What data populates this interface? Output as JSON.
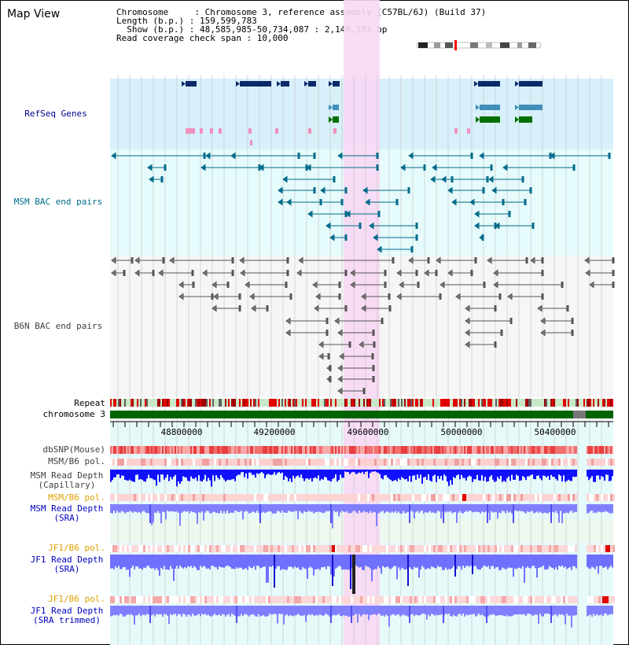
{
  "title": "Map View",
  "info": {
    "chromosome_line": "Chromosome     : Chromosome 3, reference assembly (C57BL/6J) (Build 37)",
    "length_line": "Length (b.p.) : 159,599,783",
    "show_line": "  Show (b.p.) : 48,585,985-50,734,087 : 2,148,103 bp",
    "coverage_line": "Read coverage check span : 10,000"
  },
  "tracks": {
    "refseq": "RefSeq Genes",
    "msm_bac": "MSM BAC end pairs",
    "b6n_bac": "B6N BAC end pairs",
    "repeat": "Repeat",
    "chromosome": "chromosome 3",
    "dbsnp": "dbSNP(Mouse)",
    "msm_b6_pol_1": "MSM/B6 pol.",
    "msm_read_cap": "MSM Read Depth\n(Capillary)",
    "msm_b6_pol_2": "MSM/B6 pol.",
    "msm_read_sra": "MSM Read Depth\n(SRA)",
    "jf1_b6_pol_1": "JF1/B6 pol.",
    "jf1_read_sra": "JF1 Read Depth\n(SRA)",
    "jf1_b6_pol_2": "JF1/B6 pol.",
    "jf1_read_trim": "JF1 Read Depth\n(SRA trimmed)"
  },
  "colors": {
    "refseq": "#00008b",
    "msm_bac": "#006b8b",
    "b6n_bac": "#404040",
    "orange": "#e0a000",
    "blue": "#0000c0",
    "highlight": "#f8d8f4",
    "chrom": "#006400"
  },
  "axis": {
    "ticks": [
      "48800000",
      "49200000",
      "49600000",
      "50000000",
      "50400000"
    ]
  }
}
